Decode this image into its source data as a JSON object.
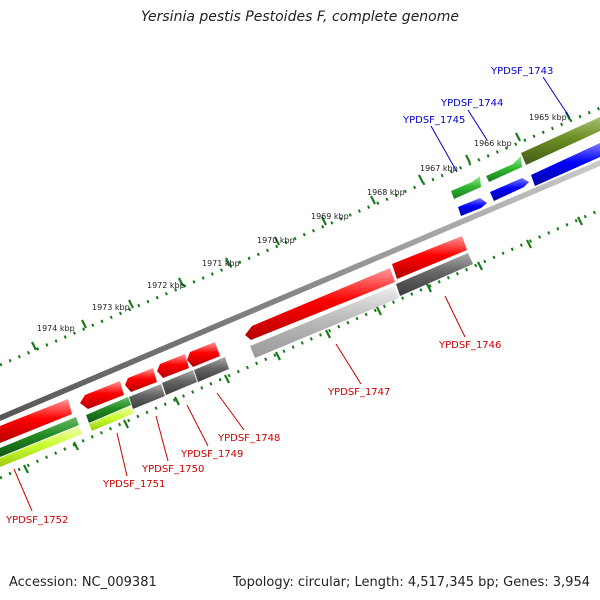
{
  "title": "Yersinia pestis Pestoides F, complete genome",
  "footer": {
    "accession": "Accession: NC_009381",
    "summary": "Topology: circular; Length: 4,517,345 bp; Genes: 3,954"
  },
  "colors": {
    "red_gene": "#ff0000",
    "blue_gene": "#0000ff",
    "green_gene": "#33bb33",
    "olive_gene": "#6b8e23",
    "grey_gene": "#666666",
    "light_grey_gene": "#bbbbbb",
    "lime_gene": "#ccff33",
    "dark_green_gene": "#228b22",
    "backbone": "#888888",
    "ticks": "#1a7a1a",
    "label_blue": "#0000cc",
    "label_red": "#cc0000",
    "leader_blue": "#0000cc",
    "leader_red": "#cc0000"
  },
  "ruler": {
    "labels": [
      "1965 kbp",
      "1966 kbp",
      "1967 kbp",
      "1968 kbp",
      "1969 kbp",
      "1970 kbp",
      "1971 kbp",
      "1972 kbp",
      "1973 kbp",
      "1974 kbp"
    ]
  },
  "genes": {
    "top_strand_labels": [
      "YPDSF_1743",
      "YPDSF_1744",
      "YPDSF_1745"
    ],
    "bottom_strand_labels": [
      "YPDSF_1746",
      "YPDSF_1747",
      "YPDSF_1748",
      "YPDSF_1749",
      "YPDSF_1750",
      "YPDSF_1751",
      "YPDSF_1752"
    ]
  }
}
